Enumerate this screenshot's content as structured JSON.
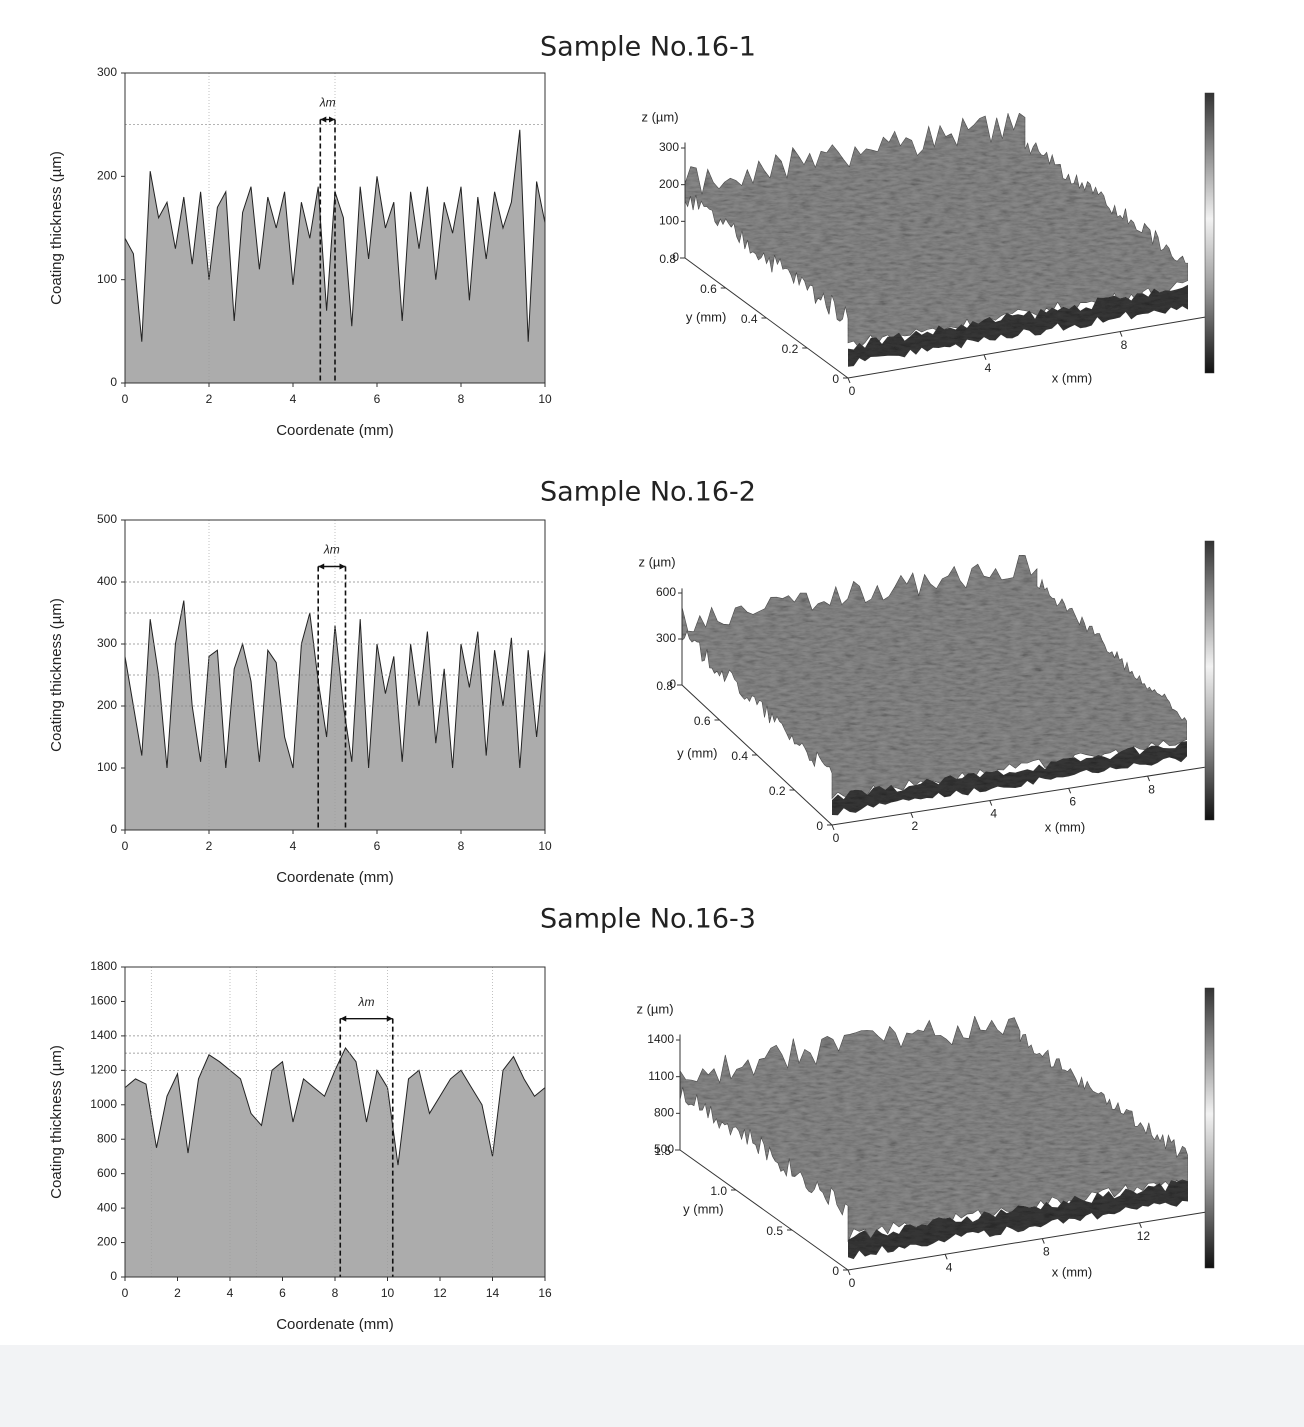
{
  "chart_data": [
    {
      "type": "area",
      "title": "Sample No.16-1",
      "xlabel": "Coordenate (mm)",
      "ylabel": "Coating thickness (µm)",
      "color": "#acacac",
      "x": [
        0,
        0.2,
        0.4,
        0.6,
        0.8,
        1,
        1.2,
        1.4,
        1.6,
        1.8,
        2,
        2.2,
        2.4,
        2.6,
        2.8,
        3,
        3.2,
        3.4,
        3.6,
        3.8,
        4,
        4.2,
        4.4,
        4.6,
        4.8,
        5,
        5.2,
        5.4,
        5.6,
        5.8,
        6,
        6.2,
        6.4,
        6.6,
        6.8,
        7,
        7.2,
        7.4,
        7.6,
        7.8,
        8,
        8.2,
        8.4,
        8.6,
        8.8,
        9,
        9.2,
        9.4,
        9.6,
        9.8,
        10
      ],
      "values": [
        140,
        125,
        40,
        205,
        160,
        175,
        130,
        180,
        115,
        185,
        100,
        170,
        185,
        60,
        165,
        190,
        110,
        180,
        150,
        185,
        95,
        175,
        140,
        190,
        70,
        185,
        160,
        55,
        190,
        120,
        200,
        150,
        175,
        60,
        185,
        130,
        190,
        100,
        175,
        145,
        190,
        80,
        180,
        120,
        185,
        150,
        175,
        245,
        40,
        195,
        155
      ],
      "xlim": [
        0,
        10
      ],
      "ylim": [
        0,
        300
      ],
      "xticks": [
        0,
        2,
        4,
        6,
        8,
        10
      ],
      "yticks": [
        0,
        100,
        200,
        300
      ],
      "hlines": [
        250
      ],
      "vlines": [
        2,
        5
      ],
      "lambda": {
        "label": "λm",
        "x": [
          4.65,
          5.0
        ],
        "y": 255
      }
    },
    {
      "type": "surface",
      "xlabel": "x (mm)",
      "ylabel": "y (mm)",
      "zlabel": "z (µm)",
      "xlim": [
        0,
        10
      ],
      "ylim": [
        0,
        0.8
      ],
      "zlim": [
        0,
        300
      ],
      "xticks": [
        0,
        4,
        8
      ],
      "yticks": [
        0,
        0.2,
        0.4,
        0.6,
        0.8
      ],
      "zticks": [
        0,
        100,
        200,
        300
      ]
    },
    {
      "type": "area",
      "title": "Sample No.16-2",
      "xlabel": "Coordenate (mm)",
      "ylabel": "Coating thickness (µm)",
      "color": "#acacac",
      "x": [
        0,
        0.2,
        0.4,
        0.6,
        0.8,
        1,
        1.2,
        1.4,
        1.6,
        1.8,
        2,
        2.2,
        2.4,
        2.6,
        2.8,
        3,
        3.2,
        3.4,
        3.6,
        3.8,
        4,
        4.2,
        4.4,
        4.6,
        4.8,
        5,
        5.2,
        5.4,
        5.6,
        5.8,
        6,
        6.2,
        6.4,
        6.6,
        6.8,
        7,
        7.2,
        7.4,
        7.6,
        7.8,
        8,
        8.2,
        8.4,
        8.6,
        8.8,
        9,
        9.2,
        9.4,
        9.6,
        9.8,
        10
      ],
      "values": [
        280,
        200,
        120,
        340,
        250,
        100,
        300,
        370,
        200,
        110,
        280,
        290,
        100,
        260,
        300,
        240,
        110,
        290,
        270,
        150,
        100,
        300,
        350,
        240,
        150,
        330,
        200,
        110,
        340,
        100,
        300,
        220,
        280,
        110,
        300,
        200,
        320,
        140,
        260,
        100,
        300,
        230,
        320,
        120,
        290,
        200,
        310,
        100,
        290,
        150,
        290
      ],
      "xlim": [
        0,
        10
      ],
      "ylim": [
        0,
        500
      ],
      "xticks": [
        0,
        2,
        4,
        6,
        8,
        10
      ],
      "yticks": [
        0,
        100,
        200,
        300,
        400,
        500
      ],
      "hlines": [
        400,
        350,
        300,
        250,
        200
      ],
      "vlines": [
        2,
        5
      ],
      "lambda": {
        "label": "λm",
        "x": [
          4.6,
          5.25
        ],
        "y": 425
      }
    },
    {
      "type": "surface",
      "xlabel": "x (mm)",
      "ylabel": "y (mm)",
      "zlabel": "z (µm)",
      "xlim": [
        0,
        9
      ],
      "ylim": [
        0,
        0.8
      ],
      "zlim": [
        0,
        600
      ],
      "xticks": [
        0,
        2,
        4,
        6,
        8
      ],
      "yticks": [
        0,
        0.2,
        0.4,
        0.6,
        0.8
      ],
      "zticks": [
        0,
        300,
        600
      ]
    },
    {
      "type": "area",
      "title": "Sample No.16-3",
      "xlabel": "Coordenate (mm)",
      "ylabel": "Coating thickness (µm)",
      "color": "#acacac",
      "x": [
        0,
        0.4,
        0.8,
        1.2,
        1.6,
        2,
        2.4,
        2.8,
        3.2,
        3.6,
        4,
        4.4,
        4.8,
        5.2,
        5.6,
        6,
        6.4,
        6.8,
        7.2,
        7.6,
        8,
        8.4,
        8.8,
        9.2,
        9.6,
        10,
        10.4,
        10.8,
        11.2,
        11.6,
        12,
        12.4,
        12.8,
        13.2,
        13.6,
        14,
        14.4,
        14.8,
        15.2,
        15.6,
        16
      ],
      "values": [
        1100,
        1150,
        1120,
        750,
        1050,
        1180,
        720,
        1150,
        1290,
        1250,
        1200,
        1150,
        950,
        880,
        1200,
        1250,
        900,
        1150,
        1100,
        1050,
        1200,
        1330,
        1250,
        900,
        1200,
        1100,
        650,
        1150,
        1200,
        950,
        1050,
        1150,
        1200,
        1100,
        1000,
        700,
        1200,
        1280,
        1150,
        1050,
        1100
      ],
      "xlim": [
        0,
        16
      ],
      "ylim": [
        0,
        1800
      ],
      "xticks": [
        0,
        2,
        4,
        6,
        8,
        10,
        12,
        14,
        16
      ],
      "yticks": [
        0,
        200,
        400,
        600,
        800,
        1000,
        1200,
        1400,
        1600,
        1800
      ],
      "hlines": [
        1400,
        1300,
        1200
      ],
      "vlines": [
        1,
        4,
        5,
        8,
        10,
        14
      ],
      "lambda": {
        "label": "λm",
        "x": [
          8.2,
          10.2
        ],
        "y": 1500
      }
    },
    {
      "type": "surface",
      "xlabel": "x (mm)",
      "ylabel": "y (mm)",
      "zlabel": "z (µm)",
      "xlim": [
        0,
        14
      ],
      "ylim": [
        0,
        1.5
      ],
      "zlim": [
        500,
        1400
      ],
      "xticks": [
        0,
        4,
        8,
        12
      ],
      "yticks": [
        0,
        0.5,
        {
          "value": 1.0,
          "label": "1.0"
        },
        1.5
      ],
      "zticks": [
        500,
        800,
        1100,
        1400
      ]
    }
  ]
}
